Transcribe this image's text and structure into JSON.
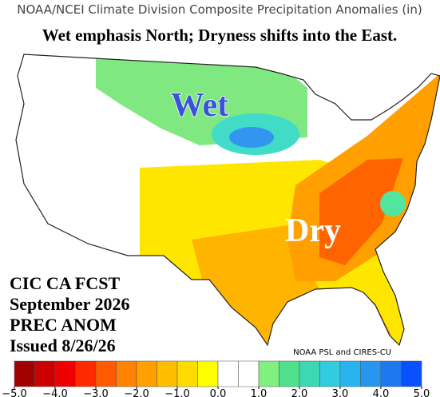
{
  "header": {
    "title": "NOAA/NCEI Climate Division Composite Precipitation Anomalies (in)",
    "subtitle": "Wet emphasis North; Dryness shifts into the East."
  },
  "map": {
    "labels": [
      "Wet",
      "Dry"
    ]
  },
  "forecast_info": [
    "CIC CA FCST",
    "September 2026",
    "PREC ANOM",
    "Issued 8/26/26"
  ],
  "credit": "NOAA PSL and CIRES-CU",
  "colorbar": {
    "bounds": [
      -5,
      5
    ],
    "ticks": [
      {
        "value": -5,
        "label": "−5.0"
      },
      {
        "value": -4,
        "label": "−4.0"
      },
      {
        "value": -3,
        "label": "−3.0"
      },
      {
        "value": -2,
        "label": "−2.0"
      },
      {
        "value": -1,
        "label": "−1.0"
      },
      {
        "value": 0,
        "label": "0.0"
      },
      {
        "value": 1,
        "label": "1.0"
      },
      {
        "value": 2,
        "label": "2.0"
      },
      {
        "value": 3,
        "label": "3.0"
      },
      {
        "value": 4,
        "label": "4.0"
      },
      {
        "value": 5,
        "label": "5.0"
      }
    ],
    "colors": [
      "#a00000",
      "#cc0000",
      "#ee0000",
      "#ff2a00",
      "#ff5a00",
      "#ff8200",
      "#ffa000",
      "#ffbe00",
      "#ffdc00",
      "#ffff00",
      "#ffffff",
      "#ffffff",
      "#80f080",
      "#50e08c",
      "#3cd8b4",
      "#32cce0",
      "#28b4f0",
      "#2896f0",
      "#1e78f0",
      "#0a50ff"
    ]
  }
}
